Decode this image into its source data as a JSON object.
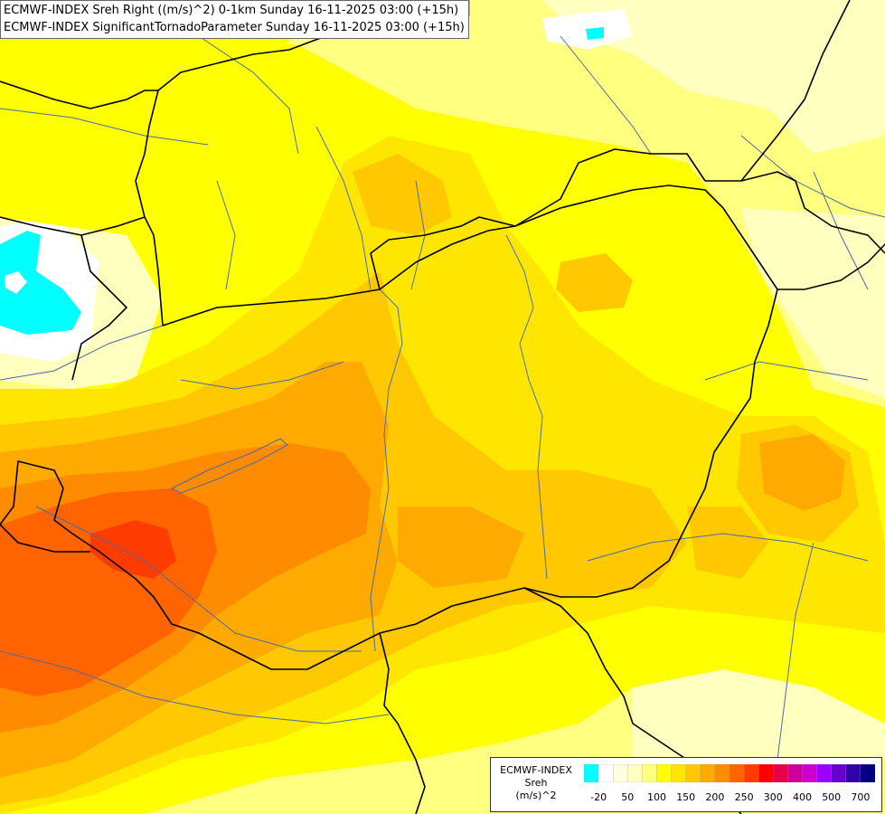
{
  "titles": {
    "line1": "ECMWF-INDEX Sreh Right ((m/s)^2) 0-1km Sunday 16-11-2025 03:00 (+15h)",
    "line2": "ECMWF-INDEX SignificantTornadoParameter Sunday 16-11-2025 03:00 (+15h)"
  },
  "legend": {
    "title_lines": [
      "ECMWF-INDEX",
      "Sreh",
      "(m/s)^2"
    ],
    "colors": [
      "#00ffff",
      "#ffffff",
      "#ffffe0",
      "#ffffc0",
      "#ffff80",
      "#ffff00",
      "#ffe600",
      "#ffc800",
      "#ffaa00",
      "#ff8c00",
      "#ff6400",
      "#ff3c00",
      "#ff0000",
      "#e6004b",
      "#cc0099",
      "#cc00cc",
      "#9900ff",
      "#6600cc",
      "#3300aa",
      "#000080"
    ],
    "tick_labels": [
      "-20",
      "50",
      "100",
      "150",
      "200",
      "250",
      "300",
      "400",
      "500",
      "700"
    ]
  },
  "field_colors": {
    "very_low": "#ffffc0",
    "low": "#ffff80",
    "mid": "#ffff00",
    "mid_high": "#ffe600",
    "high": "#ffc800",
    "higher": "#ffaa00",
    "orange": "#ff8c00",
    "red_orange": "#ff6400",
    "red": "#ff3c00",
    "negative": "#00ffff",
    "white": "#ffffff",
    "borders": "#000000",
    "rivers": "#4d6aa8"
  }
}
